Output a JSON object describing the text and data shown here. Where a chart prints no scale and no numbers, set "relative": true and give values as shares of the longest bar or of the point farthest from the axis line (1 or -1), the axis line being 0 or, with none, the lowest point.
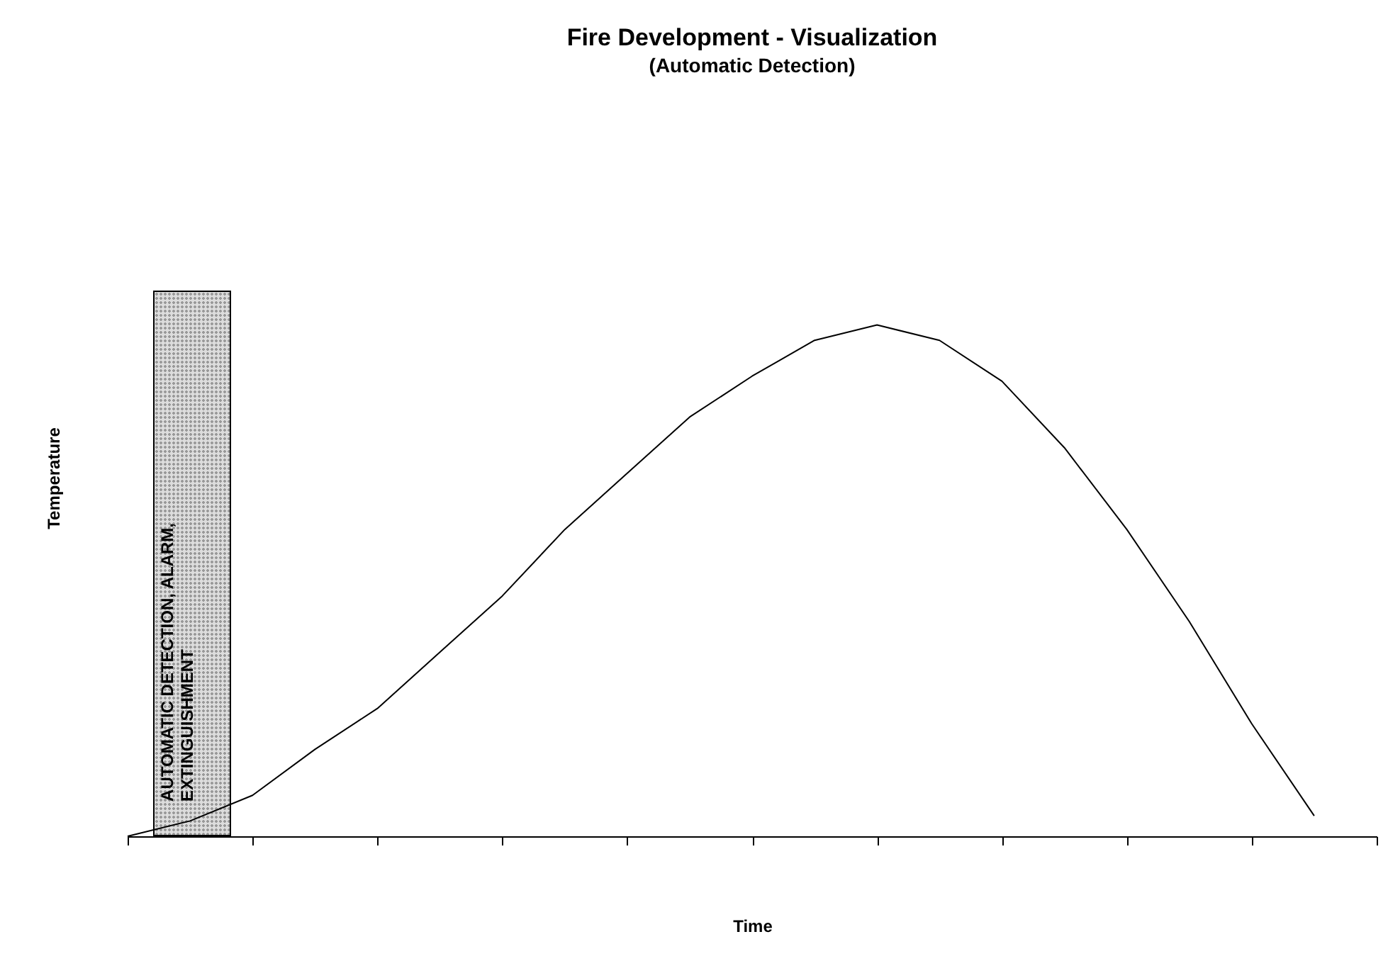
{
  "chart_data": {
    "type": "line",
    "title": "Fire Development - Visualization",
    "subtitle": "(Automatic Detection)",
    "xlabel": "Time",
    "ylabel": "Temperature",
    "relative": true,
    "categories": [
      null,
      null,
      null,
      null,
      null,
      null,
      null,
      null,
      null,
      null,
      null,
      null,
      null,
      null,
      null,
      null,
      null,
      null,
      null,
      null,
      null
    ],
    "series": [
      {
        "color": "#000000",
        "values": [
          0,
          0.03,
          0.08,
          0.17,
          0.25,
          0.36,
          0.47,
          0.6,
          0.71,
          0.82,
          0.9,
          0.97,
          1,
          0.97,
          0.89,
          0.76,
          0.6,
          0.42,
          0.22,
          0.04,
          null
        ]
      }
    ],
    "annotations": [
      "AUTOMATIC DETECTION, ALARM, EXTINGUISHMENT"
    ]
  }
}
